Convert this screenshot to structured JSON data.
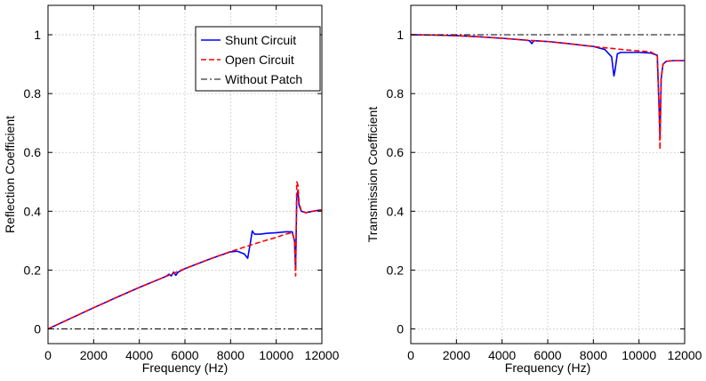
{
  "chart_data": [
    {
      "type": "line",
      "xlabel": "Frequency (Hz)",
      "ylabel": "Reflection Coefficient",
      "xlim": [
        0,
        12000
      ],
      "ylim": [
        -0.05,
        1.1
      ],
      "xticks": [
        0,
        2000,
        4000,
        6000,
        8000,
        10000,
        12000
      ],
      "yticks": [
        0,
        0.2,
        0.4,
        0.6,
        0.8,
        1
      ],
      "grid": true,
      "legend_position": "top-right",
      "series": [
        {
          "name": "Shunt Circuit",
          "color": "#0000ff",
          "style": "solid",
          "x": [
            0,
            1000,
            2000,
            3000,
            4000,
            5000,
            5200,
            5300,
            5400,
            5500,
            5600,
            5700,
            6000,
            7000,
            7500,
            8000,
            8300,
            8600,
            8750,
            8850,
            8950,
            9050,
            9300,
            9600,
            10000,
            10400,
            10700,
            10800,
            10850,
            10900,
            10950,
            11000,
            11100,
            11300,
            11600,
            12000
          ],
          "y": [
            0,
            0.036,
            0.072,
            0.107,
            0.141,
            0.173,
            0.18,
            0.186,
            0.18,
            0.193,
            0.182,
            0.193,
            0.205,
            0.235,
            0.249,
            0.262,
            0.264,
            0.255,
            0.24,
            0.285,
            0.333,
            0.322,
            0.322,
            0.325,
            0.327,
            0.33,
            0.33,
            0.3,
            0.2,
            0.45,
            0.47,
            0.42,
            0.4,
            0.395,
            0.4,
            0.405
          ]
        },
        {
          "name": "Open Circuit",
          "color": "#ff0000",
          "style": "dashed",
          "x": [
            0,
            1000,
            2000,
            3000,
            4000,
            5000,
            6000,
            7000,
            8000,
            9000,
            9500,
            10000,
            10400,
            10700,
            10800,
            10850,
            10900,
            10950,
            11000,
            11100,
            11300,
            11600,
            12000
          ],
          "y": [
            0,
            0.036,
            0.072,
            0.107,
            0.141,
            0.173,
            0.205,
            0.235,
            0.263,
            0.288,
            0.3,
            0.311,
            0.322,
            0.327,
            0.3,
            0.18,
            0.5,
            0.49,
            0.43,
            0.4,
            0.395,
            0.4,
            0.405
          ]
        },
        {
          "name": "Without Patch",
          "color": "#000000",
          "style": "dashdot",
          "x": [
            0,
            12000
          ],
          "y": [
            0,
            0
          ]
        }
      ]
    },
    {
      "type": "line",
      "xlabel": "Frequency (Hz)",
      "ylabel": "Transmission Coefficient",
      "xlim": [
        0,
        12000
      ],
      "ylim": [
        -0.05,
        1.1
      ],
      "xticks": [
        0,
        2000,
        4000,
        6000,
        8000,
        10000,
        12000
      ],
      "yticks": [
        0,
        0.2,
        0.4,
        0.6,
        0.8,
        1
      ],
      "grid": true,
      "series": [
        {
          "name": "Shunt Circuit",
          "color": "#0000ff",
          "style": "solid",
          "x": [
            0,
            1000,
            2000,
            3000,
            4000,
            5000,
            5200,
            5300,
            5400,
            6000,
            7000,
            8000,
            8500,
            8800,
            8900,
            8950,
            9050,
            9200,
            9500,
            10000,
            10500,
            10800,
            10880,
            10920,
            10970,
            11050,
            11200,
            11500,
            12000
          ],
          "y": [
            1,
            0.999,
            0.997,
            0.993,
            0.988,
            0.982,
            0.98,
            0.97,
            0.98,
            0.977,
            0.969,
            0.96,
            0.95,
            0.925,
            0.86,
            0.88,
            0.935,
            0.94,
            0.94,
            0.94,
            0.938,
            0.93,
            0.75,
            0.65,
            0.85,
            0.9,
            0.91,
            0.912,
            0.912
          ]
        },
        {
          "name": "Open Circuit",
          "color": "#ff0000",
          "style": "dashed",
          "x": [
            0,
            1000,
            2000,
            3000,
            4000,
            5000,
            6000,
            7000,
            8000,
            9000,
            9500,
            10000,
            10500,
            10800,
            10880,
            10920,
            10970,
            11050,
            11200,
            11500,
            12000
          ],
          "y": [
            1,
            0.999,
            0.997,
            0.993,
            0.988,
            0.982,
            0.977,
            0.969,
            0.96,
            0.952,
            0.948,
            0.945,
            0.942,
            0.93,
            0.75,
            0.61,
            0.85,
            0.9,
            0.91,
            0.912,
            0.912
          ]
        },
        {
          "name": "Without Patch",
          "color": "#000000",
          "style": "dashdot",
          "x": [
            0,
            12000
          ],
          "y": [
            1,
            1
          ]
        }
      ]
    }
  ]
}
